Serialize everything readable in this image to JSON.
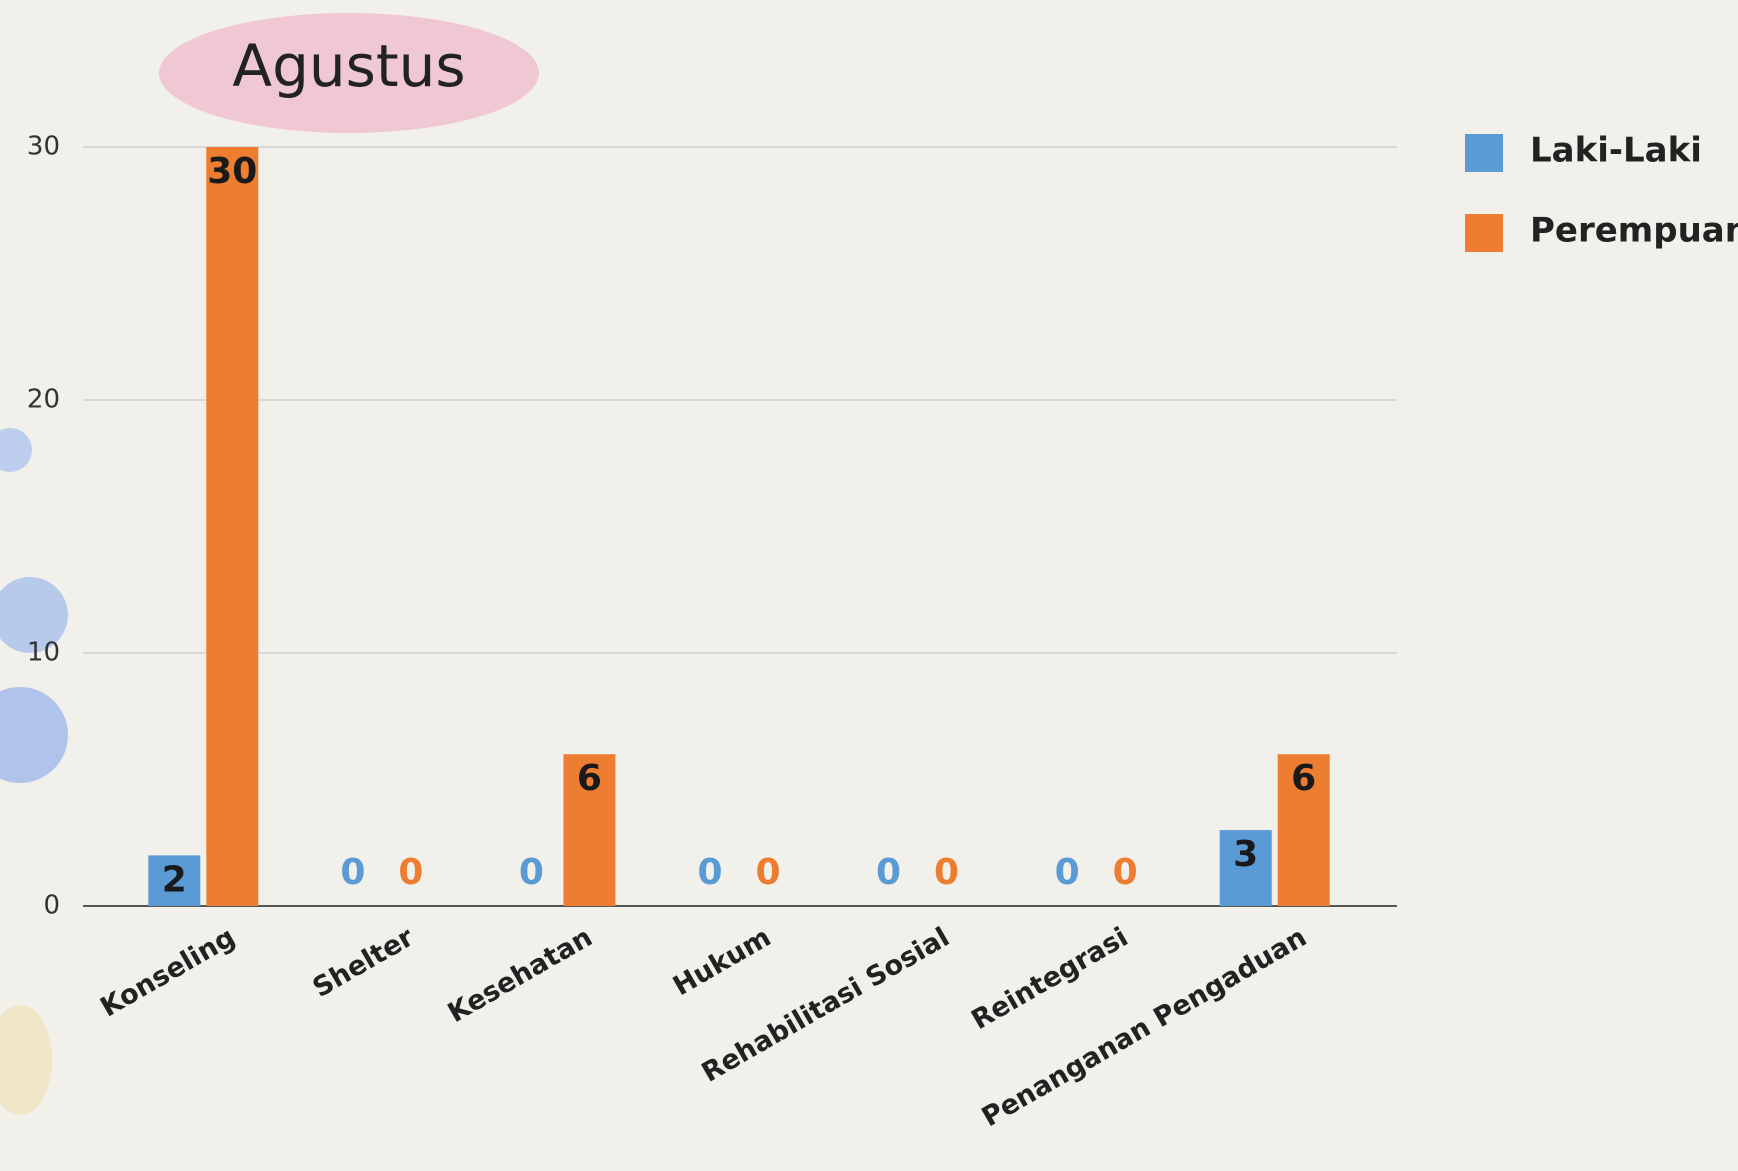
{
  "chart_data": {
    "type": "bar",
    "title": "Agustus",
    "categories": [
      "Konseling",
      "Shelter",
      "Kesehatan",
      "Hukum",
      "Rehabilitasi Sosial",
      "Reintegrasi",
      "Penanganan Pengaduan"
    ],
    "series": [
      {
        "name": "Laki-Laki",
        "color": "#5b9bd5",
        "values": [
          2,
          0,
          0,
          0,
          0,
          0,
          3
        ]
      },
      {
        "name": "Perempuan",
        "color": "#ed7d31",
        "values": [
          30,
          0,
          6,
          0,
          0,
          0,
          6
        ]
      }
    ],
    "ylim": [
      0,
      30
    ],
    "yticks": [
      0,
      10,
      20,
      30
    ],
    "grid": true,
    "legend": "right"
  }
}
